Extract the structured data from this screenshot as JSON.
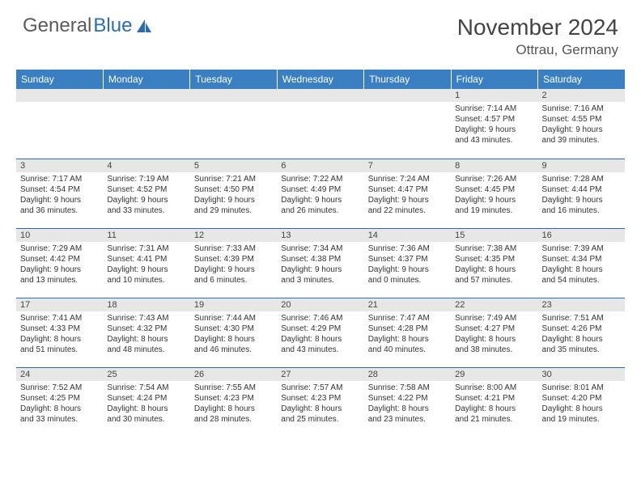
{
  "brand": {
    "part1": "General",
    "part2": "Blue",
    "logo_color": "#2a6db3"
  },
  "title": "November 2024",
  "location": "Ottrau, Germany",
  "theme": {
    "header_bg": "#3a7fc2",
    "header_text": "#ffffff",
    "daynum_bg": "#e7e7e7",
    "border_color": "#2a6db3",
    "body_text": "#333333"
  },
  "weekdays": [
    "Sunday",
    "Monday",
    "Tuesday",
    "Wednesday",
    "Thursday",
    "Friday",
    "Saturday"
  ],
  "weeks": [
    [
      {
        "n": "",
        "lines": []
      },
      {
        "n": "",
        "lines": []
      },
      {
        "n": "",
        "lines": []
      },
      {
        "n": "",
        "lines": []
      },
      {
        "n": "",
        "lines": []
      },
      {
        "n": "1",
        "lines": [
          "Sunrise: 7:14 AM",
          "Sunset: 4:57 PM",
          "Daylight: 9 hours",
          "and 43 minutes."
        ]
      },
      {
        "n": "2",
        "lines": [
          "Sunrise: 7:16 AM",
          "Sunset: 4:55 PM",
          "Daylight: 9 hours",
          "and 39 minutes."
        ]
      }
    ],
    [
      {
        "n": "3",
        "lines": [
          "Sunrise: 7:17 AM",
          "Sunset: 4:54 PM",
          "Daylight: 9 hours",
          "and 36 minutes."
        ]
      },
      {
        "n": "4",
        "lines": [
          "Sunrise: 7:19 AM",
          "Sunset: 4:52 PM",
          "Daylight: 9 hours",
          "and 33 minutes."
        ]
      },
      {
        "n": "5",
        "lines": [
          "Sunrise: 7:21 AM",
          "Sunset: 4:50 PM",
          "Daylight: 9 hours",
          "and 29 minutes."
        ]
      },
      {
        "n": "6",
        "lines": [
          "Sunrise: 7:22 AM",
          "Sunset: 4:49 PM",
          "Daylight: 9 hours",
          "and 26 minutes."
        ]
      },
      {
        "n": "7",
        "lines": [
          "Sunrise: 7:24 AM",
          "Sunset: 4:47 PM",
          "Daylight: 9 hours",
          "and 22 minutes."
        ]
      },
      {
        "n": "8",
        "lines": [
          "Sunrise: 7:26 AM",
          "Sunset: 4:45 PM",
          "Daylight: 9 hours",
          "and 19 minutes."
        ]
      },
      {
        "n": "9",
        "lines": [
          "Sunrise: 7:28 AM",
          "Sunset: 4:44 PM",
          "Daylight: 9 hours",
          "and 16 minutes."
        ]
      }
    ],
    [
      {
        "n": "10",
        "lines": [
          "Sunrise: 7:29 AM",
          "Sunset: 4:42 PM",
          "Daylight: 9 hours",
          "and 13 minutes."
        ]
      },
      {
        "n": "11",
        "lines": [
          "Sunrise: 7:31 AM",
          "Sunset: 4:41 PM",
          "Daylight: 9 hours",
          "and 10 minutes."
        ]
      },
      {
        "n": "12",
        "lines": [
          "Sunrise: 7:33 AM",
          "Sunset: 4:39 PM",
          "Daylight: 9 hours",
          "and 6 minutes."
        ]
      },
      {
        "n": "13",
        "lines": [
          "Sunrise: 7:34 AM",
          "Sunset: 4:38 PM",
          "Daylight: 9 hours",
          "and 3 minutes."
        ]
      },
      {
        "n": "14",
        "lines": [
          "Sunrise: 7:36 AM",
          "Sunset: 4:37 PM",
          "Daylight: 9 hours",
          "and 0 minutes."
        ]
      },
      {
        "n": "15",
        "lines": [
          "Sunrise: 7:38 AM",
          "Sunset: 4:35 PM",
          "Daylight: 8 hours",
          "and 57 minutes."
        ]
      },
      {
        "n": "16",
        "lines": [
          "Sunrise: 7:39 AM",
          "Sunset: 4:34 PM",
          "Daylight: 8 hours",
          "and 54 minutes."
        ]
      }
    ],
    [
      {
        "n": "17",
        "lines": [
          "Sunrise: 7:41 AM",
          "Sunset: 4:33 PM",
          "Daylight: 8 hours",
          "and 51 minutes."
        ]
      },
      {
        "n": "18",
        "lines": [
          "Sunrise: 7:43 AM",
          "Sunset: 4:32 PM",
          "Daylight: 8 hours",
          "and 48 minutes."
        ]
      },
      {
        "n": "19",
        "lines": [
          "Sunrise: 7:44 AM",
          "Sunset: 4:30 PM",
          "Daylight: 8 hours",
          "and 46 minutes."
        ]
      },
      {
        "n": "20",
        "lines": [
          "Sunrise: 7:46 AM",
          "Sunset: 4:29 PM",
          "Daylight: 8 hours",
          "and 43 minutes."
        ]
      },
      {
        "n": "21",
        "lines": [
          "Sunrise: 7:47 AM",
          "Sunset: 4:28 PM",
          "Daylight: 8 hours",
          "and 40 minutes."
        ]
      },
      {
        "n": "22",
        "lines": [
          "Sunrise: 7:49 AM",
          "Sunset: 4:27 PM",
          "Daylight: 8 hours",
          "and 38 minutes."
        ]
      },
      {
        "n": "23",
        "lines": [
          "Sunrise: 7:51 AM",
          "Sunset: 4:26 PM",
          "Daylight: 8 hours",
          "and 35 minutes."
        ]
      }
    ],
    [
      {
        "n": "24",
        "lines": [
          "Sunrise: 7:52 AM",
          "Sunset: 4:25 PM",
          "Daylight: 8 hours",
          "and 33 minutes."
        ]
      },
      {
        "n": "25",
        "lines": [
          "Sunrise: 7:54 AM",
          "Sunset: 4:24 PM",
          "Daylight: 8 hours",
          "and 30 minutes."
        ]
      },
      {
        "n": "26",
        "lines": [
          "Sunrise: 7:55 AM",
          "Sunset: 4:23 PM",
          "Daylight: 8 hours",
          "and 28 minutes."
        ]
      },
      {
        "n": "27",
        "lines": [
          "Sunrise: 7:57 AM",
          "Sunset: 4:23 PM",
          "Daylight: 8 hours",
          "and 25 minutes."
        ]
      },
      {
        "n": "28",
        "lines": [
          "Sunrise: 7:58 AM",
          "Sunset: 4:22 PM",
          "Daylight: 8 hours",
          "and 23 minutes."
        ]
      },
      {
        "n": "29",
        "lines": [
          "Sunrise: 8:00 AM",
          "Sunset: 4:21 PM",
          "Daylight: 8 hours",
          "and 21 minutes."
        ]
      },
      {
        "n": "30",
        "lines": [
          "Sunrise: 8:01 AM",
          "Sunset: 4:20 PM",
          "Daylight: 8 hours",
          "and 19 minutes."
        ]
      }
    ]
  ]
}
